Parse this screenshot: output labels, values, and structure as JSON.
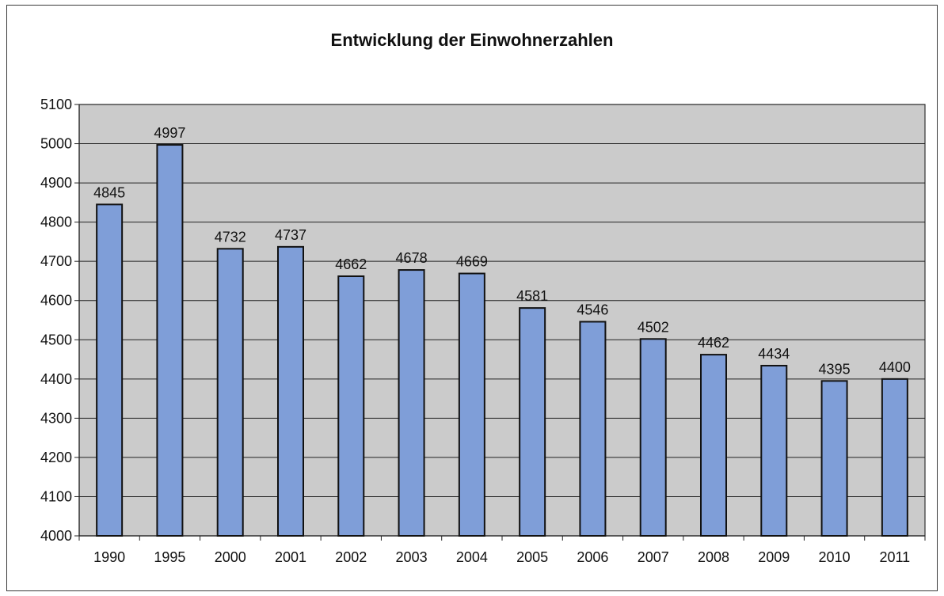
{
  "chart_data": {
    "type": "bar",
    "title": "Entwicklung der Einwohnerzahlen",
    "xlabel": "",
    "ylabel": "",
    "categories": [
      "1990",
      "1995",
      "2000",
      "2001",
      "2002",
      "2003",
      "2004",
      "2005",
      "2006",
      "2007",
      "2008",
      "2009",
      "2010",
      "2011"
    ],
    "values": [
      4845,
      4997,
      4732,
      4737,
      4662,
      4678,
      4669,
      4581,
      4546,
      4502,
      4462,
      4434,
      4395,
      4400
    ],
    "data_labels": [
      "4845",
      "4997",
      "4732",
      "4737",
      "4662",
      "4678",
      "4669",
      "4581",
      "4546",
      "4502",
      "4462",
      "4434",
      "4395",
      "4400"
    ],
    "ylim": [
      4000,
      5100
    ],
    "yticks": [
      4000,
      4100,
      4200,
      4300,
      4400,
      4500,
      4600,
      4700,
      4800,
      4900,
      5000,
      5100
    ],
    "grid": true,
    "legend": "none",
    "colors": {
      "bar": "#7f9ed8",
      "bar_border": "#111111",
      "plot_background": "#cbcbcb",
      "gridline": "#222222"
    }
  }
}
